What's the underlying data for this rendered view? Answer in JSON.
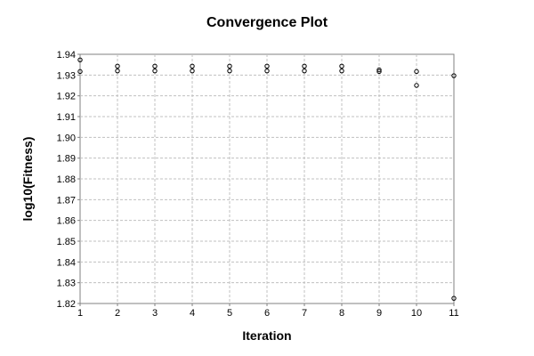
{
  "chart_data": {
    "type": "scatter",
    "title": "Convergence Plot",
    "xlabel": "Iteration",
    "ylabel": "log10(Fitness)",
    "xlim": [
      1,
      11
    ],
    "ylim": [
      1.82,
      1.94
    ],
    "x_ticks": [
      1,
      2,
      3,
      4,
      5,
      6,
      7,
      8,
      9,
      10,
      11
    ],
    "y_ticks": [
      "1.82",
      "1.83",
      "1.84",
      "1.85",
      "1.86",
      "1.87",
      "1.88",
      "1.89",
      "1.90",
      "1.91",
      "1.92",
      "1.93",
      "1.94"
    ],
    "grid": true,
    "legend": "none",
    "points": [
      {
        "x": 1,
        "y": 1.9373
      },
      {
        "x": 1,
        "y": 1.9317
      },
      {
        "x": 2,
        "y": 1.9343
      },
      {
        "x": 2,
        "y": 1.932
      },
      {
        "x": 3,
        "y": 1.9343
      },
      {
        "x": 3,
        "y": 1.932
      },
      {
        "x": 4,
        "y": 1.9343
      },
      {
        "x": 4,
        "y": 1.932
      },
      {
        "x": 5,
        "y": 1.9343
      },
      {
        "x": 5,
        "y": 1.932
      },
      {
        "x": 6,
        "y": 1.9343
      },
      {
        "x": 6,
        "y": 1.932
      },
      {
        "x": 7,
        "y": 1.9343
      },
      {
        "x": 7,
        "y": 1.932
      },
      {
        "x": 8,
        "y": 1.9343
      },
      {
        "x": 8,
        "y": 1.932
      },
      {
        "x": 9,
        "y": 1.9325
      },
      {
        "x": 9,
        "y": 1.9317
      },
      {
        "x": 10,
        "y": 1.9317
      },
      {
        "x": 10,
        "y": 1.925
      },
      {
        "x": 11,
        "y": 1.9297
      },
      {
        "x": 11,
        "y": 1.8225
      }
    ],
    "colors": {
      "marker": "#000000",
      "grid": "#c0c0c0",
      "frame": "#808080"
    }
  }
}
